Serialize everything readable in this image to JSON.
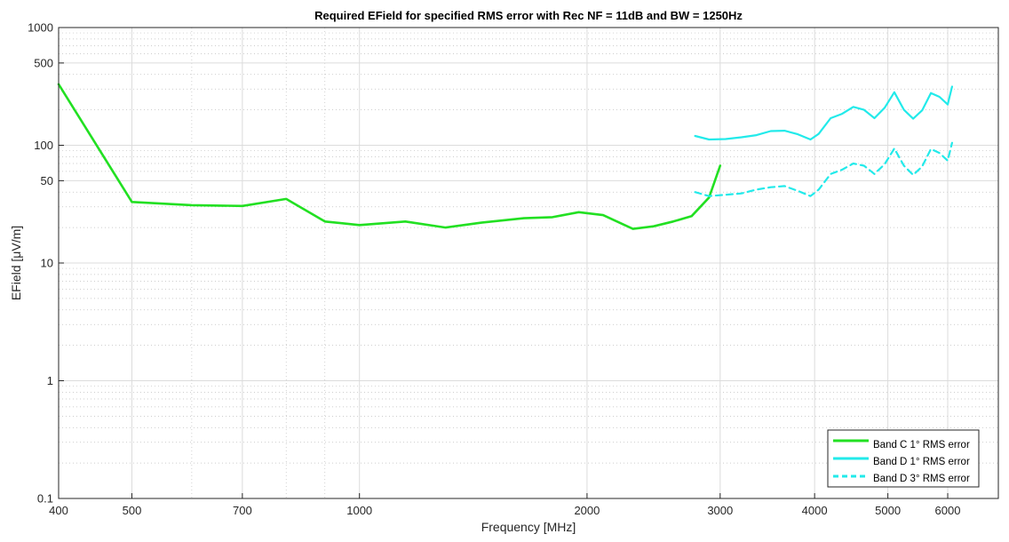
{
  "chart_data": {
    "type": "line",
    "title": "Required EField for specified RMS error with Rec NF = 11dB and BW = 1250Hz",
    "xlabel": "Frequency [MHz]",
    "ylabel": "EField [μV/m]",
    "xscale": "log",
    "yscale": "log",
    "xlim": [
      400,
      7000
    ],
    "ylim": [
      0.1,
      1000
    ],
    "x_ticks": [
      400,
      500,
      700,
      1000,
      2000,
      3000,
      4000,
      5000,
      6000
    ],
    "x_tick_labels": [
      "400",
      "500",
      "700",
      "1000",
      "2000",
      "3000",
      "4000",
      "5000",
      "6000"
    ],
    "y_ticks": [
      0.1,
      1,
      10,
      50,
      100,
      500,
      1000
    ],
    "y_tick_labels": [
      "0.1",
      "1",
      "10",
      "50",
      "100",
      "500",
      "1000"
    ],
    "grid": true,
    "minor_grid": true,
    "legend_position": "bottom-right",
    "series": [
      {
        "name": "Band C 1° RMS error",
        "color": "#22e022",
        "style": "solid",
        "x": [
          400,
          500,
          600,
          700,
          800,
          900,
          1000,
          1150,
          1300,
          1450,
          1650,
          1800,
          1950,
          2100,
          2300,
          2450,
          2600,
          2750,
          2900,
          3000
        ],
        "y": [
          330,
          33,
          31,
          30.5,
          35,
          22.5,
          21,
          22.5,
          20,
          22,
          24,
          24.5,
          27,
          25.5,
          19.5,
          20.5,
          22.5,
          25,
          36,
          67
        ]
      },
      {
        "name": "Band D 1° RMS error",
        "color": "#22eaea",
        "style": "solid",
        "x": [
          2780,
          2900,
          3050,
          3200,
          3350,
          3500,
          3650,
          3800,
          3950,
          4050,
          4200,
          4350,
          4500,
          4650,
          4800,
          4950,
          5100,
          5250,
          5400,
          5550,
          5700,
          5850,
          6000,
          6080
        ],
        "y": [
          120,
          112,
          113,
          117,
          122,
          132,
          133,
          124,
          112,
          125,
          170,
          185,
          212,
          200,
          170,
          208,
          282,
          200,
          168,
          198,
          278,
          258,
          222,
          315
        ]
      },
      {
        "name": "Band D 3° RMS error",
        "color": "#22eaea",
        "style": "dashed",
        "x": [
          2780,
          2900,
          3050,
          3200,
          3350,
          3500,
          3650,
          3800,
          3950,
          4050,
          4200,
          4350,
          4500,
          4650,
          4800,
          4950,
          5100,
          5250,
          5400,
          5550,
          5700,
          5850,
          6000,
          6080
        ],
        "y": [
          40,
          37,
          38,
          39,
          42,
          44,
          45,
          41,
          37,
          42,
          57,
          62,
          70,
          67,
          57,
          69,
          94,
          67,
          56,
          66,
          93,
          86,
          74,
          105
        ]
      }
    ]
  }
}
